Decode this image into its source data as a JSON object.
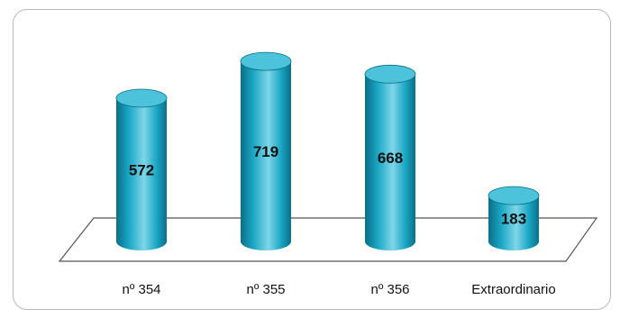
{
  "chart_data": {
    "type": "bar",
    "style": "3d-cylinder",
    "categories": [
      "nº 354",
      "nº 355",
      "nº 356",
      "Extraordinario"
    ],
    "values": [
      572,
      719,
      668,
      183
    ],
    "ylim": [
      0,
      800
    ],
    "grid": false,
    "legend": "none",
    "colors": {
      "bar_body": "#1aa6c4",
      "bar_light": "#7fd6e8",
      "bar_dark": "#0b6f88",
      "bar_top": "#4cc3db",
      "floor_stroke": "#555555",
      "frame": "#b9b9b9"
    }
  }
}
